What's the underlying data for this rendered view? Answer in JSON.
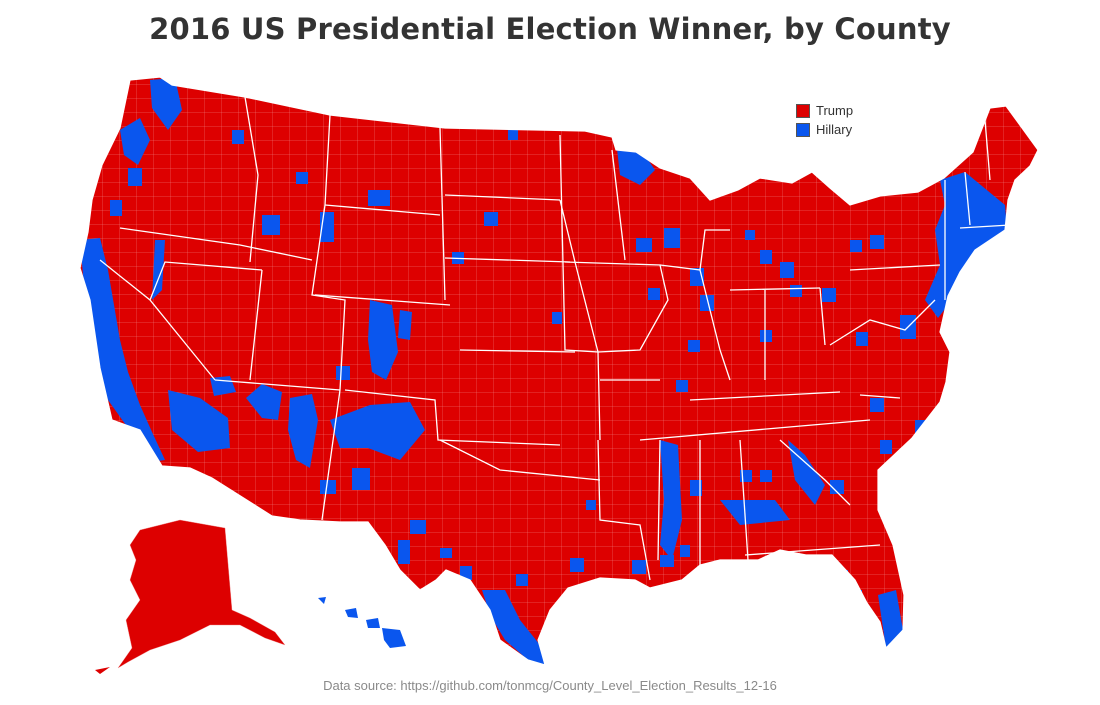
{
  "title": "2016 US Presidential Election Winner, by County",
  "legend": [
    {
      "label": "Trump",
      "color": "#dd0000"
    },
    {
      "label": "Hillary",
      "color": "#0a56ee"
    }
  ],
  "source": "Data source: https://github.com/tonmcg/County_Level_Election_Results_12-16",
  "colors": {
    "trump": "#dd0000",
    "hillary": "#0a56ee",
    "borders": "#ffffff",
    "county_lines": "#f08a8a"
  }
}
